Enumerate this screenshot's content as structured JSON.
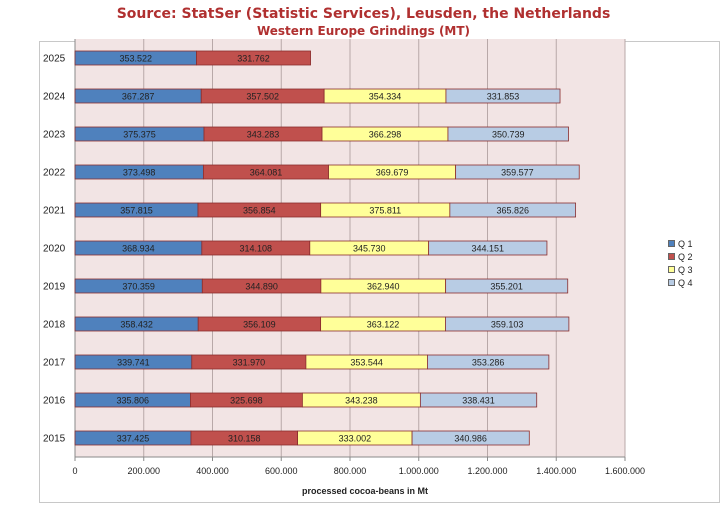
{
  "title": "Source: StatSer (Statistic Services), Leusden, the Netherlands",
  "subtitle": "Western Europe Grindings (MT)",
  "chart_data": {
    "type": "bar",
    "orientation": "horizontal",
    "stacked": true,
    "xlabel": "processed cocoa-beans in Mt",
    "xlim": [
      0,
      1600000
    ],
    "x_ticks": [
      "0",
      "200.000",
      "400.000",
      "600.000",
      "800.000",
      "1.000.000",
      "1.200.000",
      "1.400.000",
      "1.600.000"
    ],
    "x_tick_values": [
      0,
      200000,
      400000,
      600000,
      800000,
      1000000,
      1200000,
      1400000,
      1600000
    ],
    "grid": "vertical",
    "legend_position": "right",
    "categories": [
      "2025",
      "2024",
      "2023",
      "2022",
      "2021",
      "2020",
      "2019",
      "2018",
      "2017",
      "2016",
      "2015"
    ],
    "series": [
      {
        "name": "Q 1",
        "color": "#4f81bd",
        "values": [
          353522,
          367287,
          375375,
          373498,
          357815,
          368934,
          370359,
          358432,
          339741,
          335806,
          337425
        ],
        "labels": [
          "353.522",
          "367.287",
          "375.375",
          "373.498",
          "357.815",
          "368.934",
          "370.359",
          "358.432",
          "339.741",
          "335.806",
          "337.425"
        ]
      },
      {
        "name": "Q 2",
        "color": "#c0504d",
        "values": [
          331762,
          357502,
          343283,
          364081,
          356854,
          314108,
          344890,
          356109,
          331970,
          325698,
          310158
        ],
        "labels": [
          "331.762",
          "357.502",
          "343.283",
          "364.081",
          "356.854",
          "314.108",
          "344.890",
          "356.109",
          "331.970",
          "325.698",
          "310.158"
        ]
      },
      {
        "name": "Q 3",
        "color": "#ffff99",
        "values": [
          null,
          354334,
          366298,
          369679,
          375811,
          345730,
          362940,
          363122,
          353544,
          343238,
          333002
        ],
        "labels": [
          "",
          "354.334",
          "366.298",
          "369.679",
          "375.811",
          "345.730",
          "362.940",
          "363.122",
          "353.544",
          "343.238",
          "333.002"
        ]
      },
      {
        "name": "Q 4",
        "color": "#b8cce4",
        "values": [
          null,
          331853,
          350739,
          359577,
          365826,
          344151,
          355201,
          359103,
          353286,
          338431,
          340986
        ],
        "labels": [
          "",
          "331.853",
          "350.739",
          "359.577",
          "365.826",
          "344.151",
          "355.201",
          "359.103",
          "353.286",
          "338.431",
          "340.986"
        ]
      }
    ],
    "colors": {
      "plot_background": "#f2e4e4",
      "bar_border": "#8b2e2e",
      "grid": "#b8a8a8"
    }
  }
}
